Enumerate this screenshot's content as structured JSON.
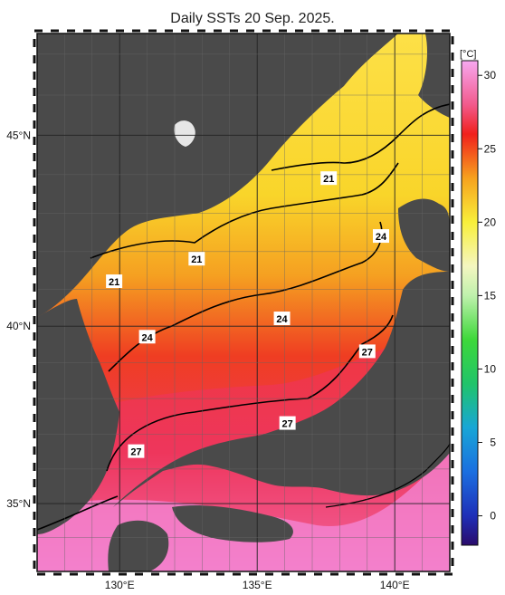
{
  "title": "Daily SSTs 20 Sep. 2025.",
  "unit_label": "[°C]",
  "lat_labels": [
    {
      "value": 45,
      "text": "45°N"
    },
    {
      "value": 40,
      "text": "40°N"
    },
    {
      "value": 35,
      "text": "35°N"
    }
  ],
  "lon_labels": [
    {
      "value": 130,
      "text": "130°E"
    },
    {
      "value": 135,
      "text": "135°E"
    },
    {
      "value": 140,
      "text": "140°E"
    }
  ],
  "colorbar": {
    "ticks": [
      30,
      25,
      20,
      15,
      10,
      5,
      0
    ],
    "min": -2,
    "max": 31,
    "stops": [
      {
        "v": -2,
        "c": "#2a0b6b"
      },
      {
        "v": 0,
        "c": "#1f2fb8"
      },
      {
        "v": 3,
        "c": "#1b6fe0"
      },
      {
        "v": 6,
        "c": "#18a6d6"
      },
      {
        "v": 9,
        "c": "#20c46a"
      },
      {
        "v": 12,
        "c": "#3ed83a"
      },
      {
        "v": 15,
        "c": "#bff1ad"
      },
      {
        "v": 17,
        "c": "#f4f6c0"
      },
      {
        "v": 20,
        "c": "#f8ef3a"
      },
      {
        "v": 23,
        "c": "#f7a21e"
      },
      {
        "v": 26,
        "c": "#f0201c"
      },
      {
        "v": 28,
        "c": "#f25a8c"
      },
      {
        "v": 31,
        "c": "#f7a8f0"
      }
    ]
  },
  "contour_labels": [
    {
      "text": "21",
      "lon": 137.6,
      "lat": 43.9
    },
    {
      "text": "21",
      "lon": 132.8,
      "lat": 41.8
    },
    {
      "text": "21",
      "lon": 129.8,
      "lat": 41.2
    },
    {
      "text": "24",
      "lon": 139.5,
      "lat": 42.4
    },
    {
      "text": "24",
      "lon": 135.9,
      "lat": 40.2
    },
    {
      "text": "24",
      "lon": 131.0,
      "lat": 39.7
    },
    {
      "text": "27",
      "lon": 139.0,
      "lat": 39.3
    },
    {
      "text": "27",
      "lon": 136.1,
      "lat": 37.3
    },
    {
      "text": "27",
      "lon": 130.6,
      "lat": 36.5
    }
  ]
}
